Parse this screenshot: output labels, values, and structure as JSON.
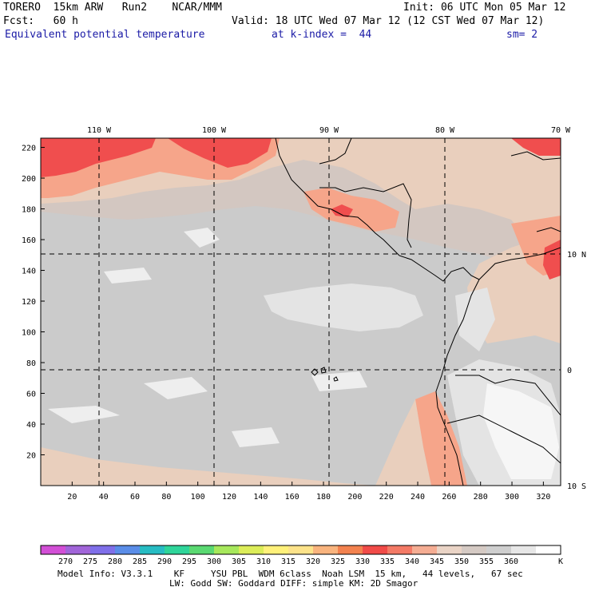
{
  "header": {
    "model": "TORERO",
    "resolution": "15km ARW",
    "run": "Run2",
    "org": "NCAR/MMM",
    "init": "Init: 06 UTC Mon 05 Mar 12",
    "fcst_label": "Fcst:",
    "fcst_value": "60 h",
    "valid": "Valid: 18 UTC Wed 07 Mar 12 (12 CST Wed 07 Mar 12)",
    "field": "Equivalent potential temperature",
    "level": "at k-index =  44",
    "smoothing": "sm= 2"
  },
  "map": {
    "x_ticks": [
      "20",
      "40",
      "60",
      "80",
      "100",
      "120",
      "140",
      "160",
      "180",
      "200",
      "220",
      "240",
      "260",
      "280",
      "300",
      "320"
    ],
    "y_ticks": [
      "20",
      "40",
      "60",
      "80",
      "100",
      "120",
      "140",
      "160",
      "180",
      "200",
      "220"
    ],
    "lon_labels": [
      "110 W",
      "100 W",
      "90 W",
      "80 W",
      "70 W"
    ],
    "lat_labels": [
      "10 N",
      "0",
      "10 S"
    ],
    "colors": {
      "hot": "#f04e4e",
      "warm": "#f6a58a",
      "tan": "#e9cfbd",
      "grey_tan": "#d3c7c1",
      "grey": "#cbcbcb",
      "light": "#e4e4e4",
      "white": "#f6f6f6"
    }
  },
  "colorbar": {
    "labels": [
      "270",
      "275",
      "280",
      "285",
      "290",
      "295",
      "300",
      "305",
      "310",
      "315",
      "320",
      "325",
      "330",
      "335",
      "340",
      "345",
      "350",
      "355",
      "360"
    ],
    "unit": "K",
    "colors": [
      "#d24fd6",
      "#a165d9",
      "#7f6fe9",
      "#5a8de8",
      "#27bcc3",
      "#2fd59a",
      "#5ad972",
      "#a7e85c",
      "#dced59",
      "#fff17a",
      "#fde38a",
      "#f9b47e",
      "#f3824f",
      "#f14b48",
      "#f47a66",
      "#f5ad93",
      "#ead4c6",
      "#d5cac4",
      "#cfcfcf",
      "#e7e7e7",
      "#ffffff"
    ]
  },
  "footer": {
    "line1": "Model Info: V3.3.1    KF     YSU PBL  WDM 6class  Noah LSM  15 km,   44 levels,   67 sec",
    "line2": "LW: Godd SW: Goddard DIFF: simple KM: 2D Smagor"
  }
}
